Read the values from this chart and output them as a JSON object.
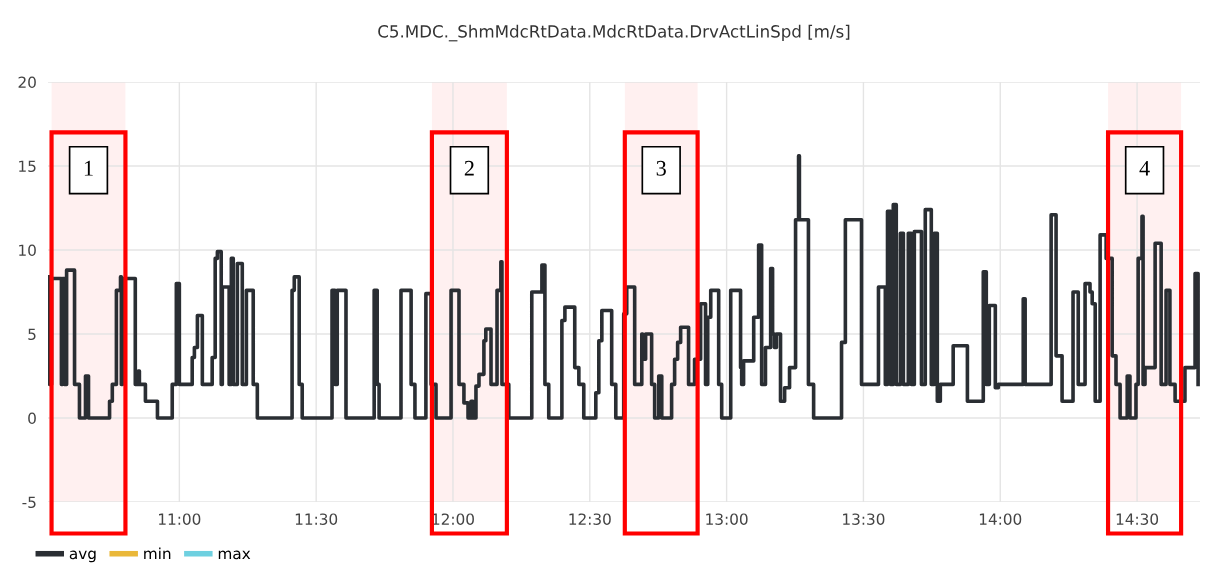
{
  "chart_data": {
    "type": "step",
    "title": "C5.MDC._ShmMdcRtData.MdcRtData.DrvActLinSpd [m/s]",
    "x": [
      10.522,
      10.526,
      10.533,
      10.569,
      10.573,
      10.58,
      10.588,
      10.617,
      10.635,
      10.657,
      10.668,
      10.745,
      10.755,
      10.77,
      10.785,
      10.788,
      10.792,
      10.839,
      10.85,
      10.854,
      10.876,
      10.92,
      10.974,
      10.989,
      11.0,
      11.047,
      11.055,
      11.066,
      11.084,
      11.12,
      11.131,
      11.139,
      11.153,
      11.157,
      11.182,
      11.19,
      11.197,
      11.212,
      11.23,
      11.245,
      11.27,
      11.285,
      11.412,
      11.42,
      11.438,
      11.449,
      11.558,
      11.569,
      11.577,
      11.609,
      11.712,
      11.723,
      11.73,
      11.81,
      11.847,
      11.861,
      11.901,
      11.92,
      11.938,
      11.993,
      12.022,
      12.04,
      12.055,
      12.066,
      12.073,
      12.084,
      12.095,
      12.113,
      12.12,
      12.139,
      12.161,
      12.175,
      12.179,
      12.204,
      12.288,
      12.325,
      12.336,
      12.35,
      12.398,
      12.409,
      12.445,
      12.46,
      12.478,
      12.522,
      12.533,
      12.544,
      12.58,
      12.595,
      12.624,
      12.635,
      12.664,
      12.69,
      12.693,
      12.704,
      12.726,
      12.737,
      12.752,
      12.763,
      12.799,
      12.81,
      12.821,
      12.832,
      12.861,
      12.883,
      12.905,
      12.923,
      12.931,
      12.942,
      12.971,
      12.982,
      13.015,
      13.051,
      13.055,
      13.062,
      13.099,
      13.117,
      13.128,
      13.142,
      13.161,
      13.168,
      13.175,
      13.182,
      13.197,
      13.212,
      13.23,
      13.252,
      13.263,
      13.266,
      13.299,
      13.318,
      13.42,
      13.434,
      13.493,
      13.555,
      13.58,
      13.588,
      13.599,
      13.609,
      13.62,
      13.635,
      13.646,
      13.664,
      13.675,
      13.686,
      13.712,
      13.726,
      13.748,
      13.759,
      13.77,
      13.781,
      13.828,
      13.88,
      13.938,
      13.949,
      13.96,
      13.982,
      13.993,
      14.084,
      14.091,
      14.186,
      14.204,
      14.226,
      14.266,
      14.285,
      14.31,
      14.328,
      14.336,
      14.347,
      14.365,
      14.387,
      14.409,
      14.423,
      14.438,
      14.464,
      14.474,
      14.496,
      14.504,
      14.518,
      14.522,
      14.529,
      14.566,
      14.588,
      14.606,
      14.62,
      14.639,
      14.675,
      14.712,
      14.723
    ],
    "series": [
      {
        "name": "avg",
        "color": "#2a2e33",
        "values": [
          8.4,
          2.0,
          8.3,
          2.0,
          8.3,
          2.0,
          8.8,
          2.0,
          0,
          2.5,
          0,
          1.0,
          2.0,
          7.6,
          8.4,
          2.0,
          8.3,
          2.0,
          2.8,
          2.0,
          1.0,
          0,
          2.0,
          8.0,
          2.0,
          3.6,
          4.2,
          6.1,
          2.0,
          3.6,
          9.5,
          9.9,
          2.0,
          7.8,
          2.0,
          9.5,
          2.0,
          9.2,
          2.0,
          7.6,
          2.0,
          0,
          7.6,
          8.4,
          2.0,
          0,
          7.6,
          2.0,
          7.6,
          0,
          7.6,
          2.0,
          0,
          7.6,
          2.0,
          0,
          7.4,
          2.0,
          0,
          7.6,
          2.0,
          0.9,
          0,
          1.0,
          0,
          1.9,
          2.6,
          4.6,
          5.3,
          2.0,
          7.6,
          9.3,
          2.0,
          0,
          7.5,
          9.1,
          2.0,
          0,
          5.8,
          6.6,
          3.0,
          2.0,
          0,
          1.5,
          4.6,
          6.4,
          2.0,
          0,
          6.2,
          7.8,
          2.0,
          5.0,
          3.5,
          5.0,
          2.0,
          0,
          2.5,
          0,
          2.0,
          3.5,
          4.5,
          5.4,
          2.0,
          3.5,
          6.8,
          2.0,
          6.0,
          7.6,
          2.0,
          0,
          7.6,
          3.0,
          2.0,
          3.4,
          6.0,
          10.3,
          2.0,
          4.2,
          8.9,
          5.0,
          4.2,
          5.0,
          1.0,
          1.8,
          3.0,
          11.8,
          15.6,
          11.8,
          2.0,
          0,
          4.5,
          11.8,
          2.0,
          7.8,
          2.0,
          12.3,
          2.0,
          12.7,
          2.0,
          11.0,
          2.0,
          11.0,
          2.0,
          11.1,
          2.0,
          12.4,
          2.0,
          11.0,
          1.0,
          2.0,
          4.3,
          1.0,
          8.7,
          2.0,
          6.7,
          1.8,
          2.0,
          7.1,
          2.0,
          12.1,
          3.7,
          1.0,
          7.5,
          2.0,
          8.0,
          7.5,
          6.8,
          1.0,
          10.9,
          9.5,
          3.7,
          2.0,
          0,
          2.5,
          0,
          2.0,
          9.5,
          12.0,
          2.0,
          3.0,
          10.4,
          2.0,
          7.6,
          2.0,
          1.0,
          3.0,
          8.6,
          2.0
        ]
      },
      {
        "name": "min",
        "color": "#eab839",
        "values": [
          null,
          null,
          null,
          null,
          null,
          null,
          null,
          null,
          null,
          null,
          null,
          null,
          null,
          null,
          null,
          null,
          null,
          null,
          null,
          null,
          null,
          null,
          null,
          null,
          null,
          null,
          null,
          null,
          null,
          null,
          null,
          null,
          null,
          null,
          null,
          null,
          null,
          null,
          null,
          null,
          null,
          null,
          null,
          null,
          null,
          null,
          null,
          null,
          null,
          null,
          null,
          null,
          null,
          null,
          null,
          null,
          null,
          null,
          null,
          null,
          null,
          null,
          null,
          null,
          null,
          null,
          null,
          null,
          null,
          null,
          null,
          null,
          null,
          null,
          null,
          null,
          null,
          null,
          null,
          null,
          null,
          null,
          null,
          null,
          null,
          null,
          null,
          null,
          null,
          null,
          null,
          null,
          null,
          null,
          null,
          null,
          null,
          null,
          null,
          null,
          null,
          null,
          null,
          null,
          null,
          null,
          null,
          null,
          null,
          null,
          null,
          null,
          null,
          null,
          null,
          null,
          null,
          null,
          null,
          null,
          null,
          null,
          null,
          null,
          null,
          null,
          null,
          null,
          null,
          null,
          null,
          null,
          null,
          null,
          null,
          null,
          null,
          null,
          null,
          null,
          null,
          null,
          null,
          null,
          null,
          null,
          null,
          null,
          null,
          null,
          null,
          null,
          null,
          null,
          null,
          null,
          null,
          null,
          null,
          null,
          null,
          null,
          null,
          null,
          null,
          null,
          null,
          null,
          null,
          null,
          null,
          null,
          null,
          null,
          null,
          null,
          null,
          null,
          null,
          null,
          null,
          null,
          null,
          null,
          null,
          null,
          null,
          null
        ]
      },
      {
        "name": "max",
        "color": "#6ed0e0",
        "values": [
          null,
          null,
          null,
          null,
          null,
          null,
          null,
          null,
          null,
          null,
          null,
          null,
          null,
          null,
          null,
          null,
          null,
          null,
          null,
          null,
          null,
          null,
          null,
          null,
          null,
          null,
          null,
          null,
          null,
          null,
          null,
          null,
          null,
          null,
          null,
          null,
          null,
          null,
          null,
          null,
          null,
          null,
          null,
          null,
          null,
          null,
          null,
          null,
          null,
          null,
          null,
          null,
          null,
          null,
          null,
          null,
          null,
          null,
          null,
          null,
          null,
          null,
          null,
          null,
          null,
          null,
          null,
          null,
          null,
          null,
          null,
          null,
          null,
          null,
          null,
          null,
          null,
          null,
          null,
          null,
          null,
          null,
          null,
          null,
          null,
          null,
          null,
          null,
          null,
          null,
          null,
          null,
          null,
          null,
          null,
          null,
          null,
          null,
          null,
          null,
          null,
          null,
          null,
          null,
          null,
          null,
          null,
          null,
          null,
          null,
          null,
          null,
          null,
          null,
          null,
          null,
          null,
          null,
          null,
          null,
          null,
          null,
          null,
          null,
          null,
          null,
          null,
          null,
          null,
          null,
          null,
          null,
          null,
          null,
          null,
          null,
          null,
          null,
          null,
          null,
          null,
          null,
          null,
          null,
          null,
          null,
          null,
          null,
          null,
          null,
          null,
          null,
          null,
          null,
          null,
          null,
          null,
          null,
          null,
          null,
          null,
          null,
          null,
          null,
          null,
          null,
          null,
          null,
          null,
          null,
          null,
          null,
          null,
          null,
          null,
          null,
          null,
          null,
          null,
          null,
          null,
          null,
          null,
          null,
          null,
          null,
          null,
          null
        ]
      }
    ],
    "xlim": [
      10.52,
      14.73
    ],
    "xticks": [
      {
        "value": 11,
        "label": "11:00"
      },
      {
        "value": 11.5,
        "label": "11:30"
      },
      {
        "value": 12,
        "label": "12:00"
      },
      {
        "value": 12.5,
        "label": "12:30"
      },
      {
        "value": 13,
        "label": "13:00"
      },
      {
        "value": 13.5,
        "label": "13:30"
      },
      {
        "value": 14,
        "label": "14:00"
      },
      {
        "value": 14.5,
        "label": "14:30"
      }
    ],
    "ylim": [
      -5,
      20
    ],
    "yticks": [
      -5,
      0,
      5,
      10,
      15,
      20
    ],
    "bands": [
      {
        "axis": "x",
        "from": 10.533,
        "to": 10.803,
        "label": "1",
        "color": "#ff0000"
      },
      {
        "axis": "x",
        "from": 11.923,
        "to": 12.197,
        "label": "2",
        "color": "#ff0000"
      },
      {
        "axis": "x",
        "from": 12.628,
        "to": 12.894,
        "label": "3",
        "color": "#ff0000"
      },
      {
        "axis": "x",
        "from": 14.394,
        "to": 14.661,
        "label": "4",
        "color": "#ff0000"
      }
    ],
    "grid": true,
    "legend": "bottom left",
    "line_style": "solid"
  }
}
